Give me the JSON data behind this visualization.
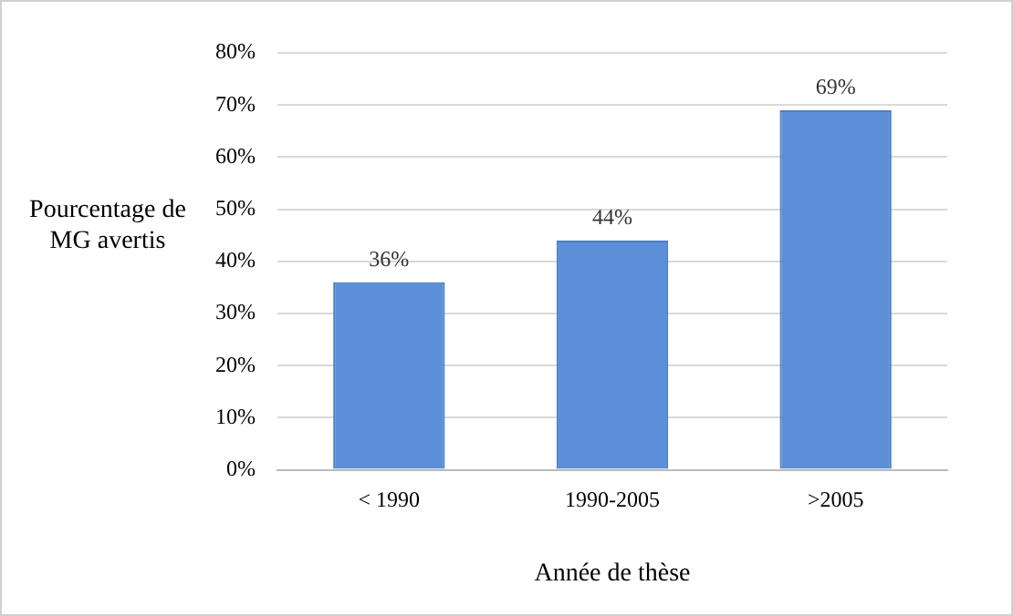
{
  "chart_data": {
    "type": "bar",
    "xlabel": "Année de thèse",
    "ylabel": "Pourcentage de MG avertis",
    "categories": [
      "< 1990",
      "1990-2005",
      ">2005"
    ],
    "values": [
      36,
      44,
      69
    ],
    "color": "#5b8fd8",
    "value_labels": [
      "36%",
      "44%",
      "69%"
    ],
    "ylim": [
      0,
      80
    ],
    "yticks": [
      {
        "value": 0,
        "label": "0%"
      },
      {
        "value": 10,
        "label": "10%"
      },
      {
        "value": 20,
        "label": "20%"
      },
      {
        "value": 30,
        "label": "30%"
      },
      {
        "value": 40,
        "label": "40%"
      },
      {
        "value": 50,
        "label": "50%"
      },
      {
        "value": 60,
        "label": "60%"
      },
      {
        "value": 70,
        "label": "70%"
      },
      {
        "value": 80,
        "label": "80%"
      }
    ],
    "grid": "y",
    "legend": false
  }
}
